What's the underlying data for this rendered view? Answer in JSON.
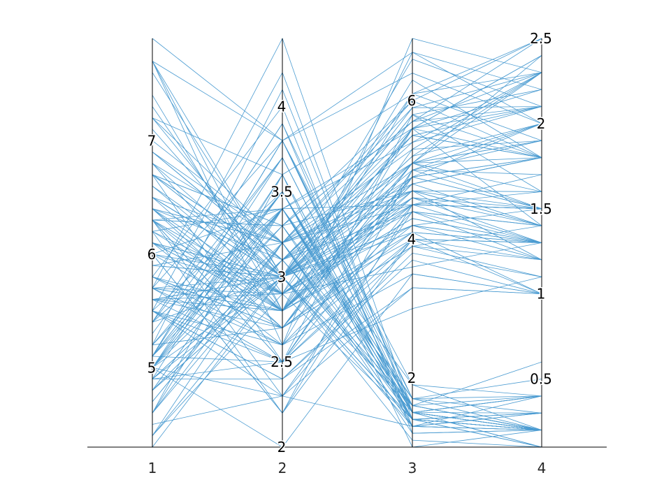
{
  "chart_data": {
    "type": "parallel_coordinates",
    "line_color": "#4a9bd1",
    "axis_color": "#000000",
    "x_categories": [
      "1",
      "2",
      "3",
      "4"
    ],
    "axes": [
      {
        "name": "1",
        "range": [
          4.3,
          7.9
        ],
        "ticks": [
          5,
          6,
          7
        ],
        "tick_labels": [
          "5",
          "6",
          "7"
        ]
      },
      {
        "name": "2",
        "range": [
          2.0,
          4.4
        ],
        "ticks": [
          2,
          2.5,
          3,
          3.5,
          4
        ],
        "tick_labels": [
          "2",
          "2.5",
          "3",
          "3.5",
          "4"
        ]
      },
      {
        "name": "3",
        "range": [
          1.0,
          6.9
        ],
        "ticks": [
          2,
          4,
          6
        ],
        "tick_labels": [
          "2",
          "4",
          "6"
        ]
      },
      {
        "name": "4",
        "range": [
          0.1,
          2.5
        ],
        "ticks": [
          0.5,
          1,
          1.5,
          2,
          2.5
        ],
        "tick_labels": [
          "0.5",
          "1",
          "1.5",
          "2",
          "2.5"
        ]
      }
    ],
    "rows": [
      [
        5.1,
        3.5,
        1.4,
        0.2
      ],
      [
        4.9,
        3.0,
        1.4,
        0.2
      ],
      [
        4.7,
        3.2,
        1.3,
        0.2
      ],
      [
        4.6,
        3.1,
        1.5,
        0.2
      ],
      [
        5.0,
        3.6,
        1.4,
        0.2
      ],
      [
        5.4,
        3.9,
        1.7,
        0.4
      ],
      [
        4.6,
        3.4,
        1.4,
        0.3
      ],
      [
        5.0,
        3.4,
        1.5,
        0.2
      ],
      [
        4.4,
        2.9,
        1.4,
        0.2
      ],
      [
        4.9,
        3.1,
        1.5,
        0.1
      ],
      [
        5.4,
        3.7,
        1.5,
        0.2
      ],
      [
        4.8,
        3.4,
        1.6,
        0.2
      ],
      [
        4.8,
        3.0,
        1.4,
        0.1
      ],
      [
        4.3,
        3.0,
        1.1,
        0.1
      ],
      [
        5.8,
        4.0,
        1.2,
        0.2
      ],
      [
        5.7,
        4.4,
        1.5,
        0.4
      ],
      [
        5.4,
        3.9,
        1.3,
        0.4
      ],
      [
        5.1,
        3.5,
        1.4,
        0.3
      ],
      [
        5.7,
        3.8,
        1.7,
        0.3
      ],
      [
        5.1,
        3.8,
        1.5,
        0.3
      ],
      [
        5.4,
        3.4,
        1.7,
        0.2
      ],
      [
        5.1,
        3.7,
        1.5,
        0.4
      ],
      [
        4.6,
        3.6,
        1.0,
        0.2
      ],
      [
        5.1,
        3.3,
        1.7,
        0.5
      ],
      [
        4.8,
        3.4,
        1.9,
        0.2
      ],
      [
        5.0,
        3.0,
        1.6,
        0.2
      ],
      [
        5.0,
        3.4,
        1.6,
        0.4
      ],
      [
        5.2,
        3.5,
        1.5,
        0.2
      ],
      [
        5.2,
        3.4,
        1.4,
        0.2
      ],
      [
        4.7,
        3.2,
        1.6,
        0.2
      ],
      [
        4.8,
        3.1,
        1.6,
        0.2
      ],
      [
        5.4,
        3.4,
        1.5,
        0.4
      ],
      [
        5.2,
        4.1,
        1.5,
        0.1
      ],
      [
        5.5,
        4.2,
        1.4,
        0.2
      ],
      [
        4.9,
        3.1,
        1.5,
        0.2
      ],
      [
        5.0,
        3.2,
        1.2,
        0.2
      ],
      [
        5.5,
        3.5,
        1.3,
        0.2
      ],
      [
        4.9,
        3.6,
        1.4,
        0.1
      ],
      [
        4.4,
        3.0,
        1.3,
        0.2
      ],
      [
        5.1,
        3.4,
        1.5,
        0.2
      ],
      [
        5.0,
        3.5,
        1.3,
        0.3
      ],
      [
        4.5,
        2.3,
        1.3,
        0.3
      ],
      [
        4.4,
        3.2,
        1.3,
        0.2
      ],
      [
        5.0,
        3.5,
        1.6,
        0.6
      ],
      [
        5.1,
        3.8,
        1.9,
        0.4
      ],
      [
        4.8,
        3.0,
        1.4,
        0.3
      ],
      [
        5.1,
        3.8,
        1.6,
        0.2
      ],
      [
        4.6,
        3.2,
        1.4,
        0.2
      ],
      [
        5.3,
        3.7,
        1.5,
        0.2
      ],
      [
        5.0,
        3.3,
        1.4,
        0.2
      ],
      [
        7.0,
        3.2,
        4.7,
        1.4
      ],
      [
        6.4,
        3.2,
        4.5,
        1.5
      ],
      [
        6.9,
        3.1,
        4.9,
        1.5
      ],
      [
        5.5,
        2.3,
        4.0,
        1.3
      ],
      [
        6.5,
        2.8,
        4.6,
        1.5
      ],
      [
        5.7,
        2.8,
        4.5,
        1.3
      ],
      [
        6.3,
        3.3,
        4.7,
        1.6
      ],
      [
        4.9,
        2.4,
        3.3,
        1.0
      ],
      [
        6.6,
        2.9,
        4.6,
        1.3
      ],
      [
        5.2,
        2.7,
        3.9,
        1.4
      ],
      [
        5.0,
        2.0,
        3.5,
        1.0
      ],
      [
        5.9,
        3.0,
        4.2,
        1.5
      ],
      [
        6.0,
        2.2,
        4.0,
        1.0
      ],
      [
        6.1,
        2.9,
        4.7,
        1.4
      ],
      [
        5.6,
        2.9,
        3.6,
        1.3
      ],
      [
        6.7,
        3.1,
        4.4,
        1.4
      ],
      [
        5.6,
        3.0,
        4.5,
        1.5
      ],
      [
        5.8,
        2.7,
        4.1,
        1.0
      ],
      [
        6.2,
        2.2,
        4.5,
        1.5
      ],
      [
        5.6,
        2.5,
        3.9,
        1.1
      ],
      [
        5.9,
        3.2,
        4.8,
        1.8
      ],
      [
        6.1,
        2.8,
        4.0,
        1.3
      ],
      [
        6.3,
        2.5,
        4.9,
        1.5
      ],
      [
        6.1,
        2.8,
        4.7,
        1.2
      ],
      [
        6.4,
        2.9,
        4.3,
        1.3
      ],
      [
        6.6,
        3.0,
        4.4,
        1.4
      ],
      [
        6.8,
        2.8,
        4.8,
        1.4
      ],
      [
        6.7,
        3.0,
        5.0,
        1.7
      ],
      [
        6.0,
        2.9,
        4.5,
        1.5
      ],
      [
        5.7,
        2.6,
        3.5,
        1.0
      ],
      [
        5.5,
        2.4,
        3.8,
        1.1
      ],
      [
        5.5,
        2.4,
        3.7,
        1.0
      ],
      [
        5.8,
        2.7,
        3.9,
        1.2
      ],
      [
        6.0,
        2.7,
        5.1,
        1.6
      ],
      [
        5.4,
        3.0,
        4.5,
        1.5
      ],
      [
        6.0,
        3.4,
        4.5,
        1.6
      ],
      [
        6.7,
        3.1,
        4.7,
        1.5
      ],
      [
        6.3,
        2.3,
        4.4,
        1.3
      ],
      [
        5.6,
        3.0,
        4.1,
        1.3
      ],
      [
        5.5,
        2.5,
        4.0,
        1.3
      ],
      [
        5.5,
        2.6,
        4.4,
        1.2
      ],
      [
        6.1,
        3.0,
        4.6,
        1.4
      ],
      [
        5.8,
        2.6,
        4.0,
        1.2
      ],
      [
        5.0,
        2.3,
        3.3,
        1.0
      ],
      [
        5.6,
        2.7,
        4.2,
        1.3
      ],
      [
        5.7,
        3.0,
        4.2,
        1.2
      ],
      [
        5.7,
        2.9,
        4.2,
        1.3
      ],
      [
        6.2,
        2.9,
        4.3,
        1.3
      ],
      [
        5.1,
        2.5,
        3.0,
        1.1
      ],
      [
        5.7,
        2.8,
        4.1,
        1.3
      ],
      [
        6.3,
        3.3,
        6.0,
        2.5
      ],
      [
        5.8,
        2.7,
        5.1,
        1.9
      ],
      [
        7.1,
        3.0,
        5.9,
        2.1
      ],
      [
        6.3,
        2.9,
        5.6,
        1.8
      ],
      [
        6.5,
        3.0,
        5.8,
        2.2
      ],
      [
        7.6,
        3.0,
        6.6,
        2.1
      ],
      [
        4.9,
        2.5,
        4.5,
        1.7
      ],
      [
        7.3,
        2.9,
        6.3,
        1.8
      ],
      [
        6.7,
        2.5,
        5.8,
        1.8
      ],
      [
        7.2,
        3.6,
        6.1,
        2.5
      ],
      [
        6.5,
        3.2,
        5.1,
        2.0
      ],
      [
        6.4,
        2.7,
        5.3,
        1.9
      ],
      [
        6.8,
        3.0,
        5.5,
        2.1
      ],
      [
        5.7,
        2.5,
        5.0,
        2.0
      ],
      [
        5.8,
        2.8,
        5.1,
        2.4
      ],
      [
        6.4,
        3.2,
        5.3,
        2.3
      ],
      [
        6.5,
        3.0,
        5.5,
        1.8
      ],
      [
        7.7,
        3.8,
        6.7,
        2.2
      ],
      [
        7.7,
        2.6,
        6.9,
        2.3
      ],
      [
        6.0,
        2.2,
        5.0,
        1.5
      ],
      [
        6.9,
        3.2,
        5.7,
        2.3
      ],
      [
        5.6,
        2.8,
        4.9,
        2.0
      ],
      [
        7.7,
        2.8,
        6.7,
        2.0
      ],
      [
        6.3,
        2.7,
        4.9,
        1.8
      ],
      [
        6.7,
        3.3,
        5.7,
        2.1
      ],
      [
        7.2,
        3.2,
        6.0,
        1.8
      ],
      [
        6.2,
        2.8,
        4.8,
        1.8
      ],
      [
        6.1,
        3.0,
        4.9,
        1.8
      ],
      [
        6.4,
        2.8,
        5.6,
        2.1
      ],
      [
        7.2,
        3.0,
        5.8,
        1.6
      ],
      [
        7.4,
        2.8,
        6.1,
        1.9
      ],
      [
        7.9,
        3.8,
        6.4,
        2.0
      ],
      [
        6.4,
        2.8,
        5.6,
        2.2
      ],
      [
        6.3,
        2.8,
        5.1,
        1.5
      ],
      [
        6.1,
        2.6,
        5.6,
        1.4
      ],
      [
        7.7,
        3.0,
        6.1,
        2.3
      ],
      [
        6.3,
        3.4,
        5.6,
        2.4
      ],
      [
        6.4,
        3.1,
        5.5,
        1.8
      ],
      [
        6.0,
        3.0,
        4.8,
        1.8
      ],
      [
        6.9,
        3.1,
        5.4,
        2.1
      ],
      [
        6.7,
        3.1,
        5.6,
        2.4
      ],
      [
        6.9,
        3.1,
        5.1,
        2.3
      ],
      [
        5.8,
        2.7,
        5.1,
        1.9
      ],
      [
        6.8,
        3.2,
        5.9,
        2.3
      ],
      [
        6.7,
        3.3,
        5.7,
        2.5
      ],
      [
        6.7,
        3.0,
        5.2,
        2.3
      ],
      [
        6.3,
        2.5,
        5.0,
        1.9
      ],
      [
        6.5,
        3.0,
        5.2,
        2.0
      ],
      [
        6.2,
        3.4,
        5.4,
        2.3
      ],
      [
        5.9,
        3.0,
        5.1,
        1.8
      ]
    ]
  }
}
